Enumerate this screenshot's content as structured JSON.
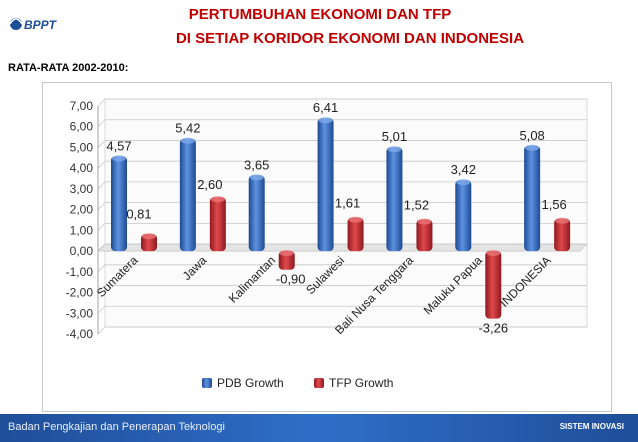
{
  "header": {
    "logo_text": "BPPT",
    "title_line1": "PERTUMBUHAN EKONOMI DAN TFP",
    "title_line2": "DI SETIAP KORIDOR EKONOMI DAN INDONESIA",
    "subtitle": "RATA-RATA 2002-2010:"
  },
  "chart_data": {
    "type": "bar",
    "categories": [
      "Sumatera",
      "Jawa",
      "Kalimantan",
      "Sulawesi",
      "Bali Nusa Tenggara",
      "Maluku Papua",
      "INDONESIA"
    ],
    "series": [
      {
        "name": "PDB Growth",
        "values": [
          4.57,
          5.42,
          3.65,
          6.41,
          5.01,
          3.42,
          5.08
        ],
        "labels": [
          "4,57",
          "5,42",
          "3,65",
          "6,41",
          "5,01",
          "3,42",
          "5,08"
        ]
      },
      {
        "name": "TFP Growth",
        "values": [
          0.81,
          2.6,
          -0.9,
          1.61,
          1.52,
          -3.26,
          1.56
        ],
        "labels": [
          "0,81",
          "2,60",
          "-0,90",
          "1,61",
          "1,52",
          "-3,26",
          "1,56"
        ]
      }
    ],
    "ylim": [
      -4,
      7
    ],
    "yticks": [
      "-4,00",
      "-3,00",
      "-2,00",
      "-1,00",
      "0,00",
      "1,00",
      "2,00",
      "3,00",
      "4,00",
      "5,00",
      "6,00",
      "7,00"
    ],
    "grid": true,
    "legend": "bottom",
    "colors": {
      "PDB Growth": "#2e63b8",
      "TFP Growth": "#c0262b"
    }
  },
  "footer": {
    "left_text": "Badan Pengkajian dan Penerapan Teknologi",
    "right_text": "SISTEM INOVASI"
  }
}
